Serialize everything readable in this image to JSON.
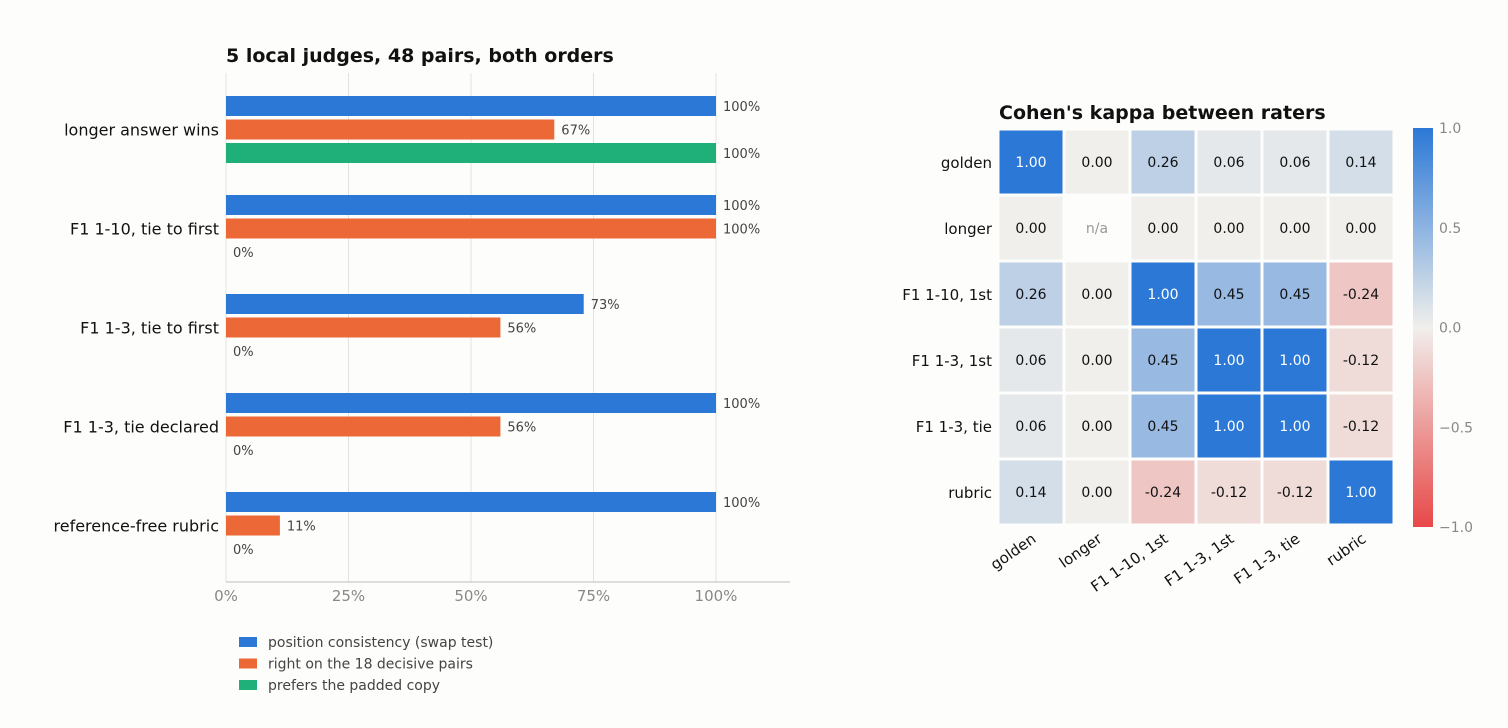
{
  "chart_data": [
    {
      "type": "bar",
      "orientation": "horizontal",
      "title": "5 local judges, 48 pairs, both orders",
      "categories": [
        "longer answer wins",
        "F1 1-10, tie to first",
        "F1 1-3, tie to first",
        "F1 1-3, tie declared",
        "reference-free rubric"
      ],
      "series": [
        {
          "name": "position consistency (swap test)",
          "color": "#2b78d6",
          "values": [
            100,
            100,
            73,
            100,
            100
          ]
        },
        {
          "name": "right on the 18 decisive pairs",
          "color": "#ec6836",
          "values": [
            67,
            100,
            56,
            56,
            11
          ]
        },
        {
          "name": "prefers the padded copy",
          "color": "#1fb07a",
          "values": [
            100,
            0,
            0,
            0,
            0
          ]
        }
      ],
      "value_labels": [
        [
          "100%",
          "100%",
          "73%",
          "100%",
          "100%"
        ],
        [
          "67%",
          "100%",
          "56%",
          "56%",
          "11%"
        ],
        [
          "100%",
          "0%",
          "0%",
          "0%",
          "0%"
        ]
      ],
      "xlim": [
        0,
        115
      ],
      "xticks": [
        0,
        25,
        50,
        75,
        100
      ],
      "xtick_labels": [
        "0%",
        "25%",
        "50%",
        "75%",
        "100%"
      ],
      "grid": true,
      "legend_position": "bottom-left"
    },
    {
      "type": "heatmap",
      "title": "Cohen's kappa between raters",
      "rows": [
        "golden",
        "longer",
        "F1 1-10, 1st",
        "F1 1-3, 1st",
        "F1 1-3, tie",
        "rubric"
      ],
      "columns": [
        "golden",
        "longer",
        "F1 1-10, 1st",
        "F1 1-3, 1st",
        "F1 1-3, tie",
        "rubric"
      ],
      "values": [
        [
          1.0,
          0.0,
          0.26,
          0.06,
          0.06,
          0.14
        ],
        [
          0.0,
          null,
          0.0,
          0.0,
          0.0,
          0.0
        ],
        [
          0.26,
          0.0,
          1.0,
          0.45,
          0.45,
          -0.24
        ],
        [
          0.06,
          0.0,
          0.45,
          1.0,
          1.0,
          -0.12
        ],
        [
          0.06,
          0.0,
          0.45,
          1.0,
          1.0,
          -0.12
        ],
        [
          0.14,
          0.0,
          -0.24,
          -0.12,
          -0.12,
          1.0
        ]
      ],
      "cell_labels": [
        [
          "1.00",
          "0.00",
          "0.26",
          "0.06",
          "0.06",
          "0.14"
        ],
        [
          "0.00",
          "n/a",
          "0.00",
          "0.00",
          "0.00",
          "0.00"
        ],
        [
          "0.26",
          "0.00",
          "1.00",
          "0.45",
          "0.45",
          "-0.24"
        ],
        [
          "0.06",
          "0.00",
          "0.45",
          "1.00",
          "1.00",
          "-0.12"
        ],
        [
          "0.06",
          "0.00",
          "0.45",
          "1.00",
          "1.00",
          "-0.12"
        ],
        [
          "0.14",
          "0.00",
          "-0.24",
          "-0.12",
          "-0.12",
          "1.00"
        ]
      ],
      "vmin": -1.0,
      "vmax": 1.0,
      "colorbar_ticks": [
        1.0,
        0.5,
        0.0,
        -0.5,
        -1.0
      ],
      "colorbar_tick_labels": [
        "1.0",
        "0.5",
        "0.0",
        "−0.5",
        "−1.0"
      ],
      "colors": {
        "high": "#2b78d6",
        "mid": "#f0efec",
        "low": "#e84848"
      }
    }
  ]
}
